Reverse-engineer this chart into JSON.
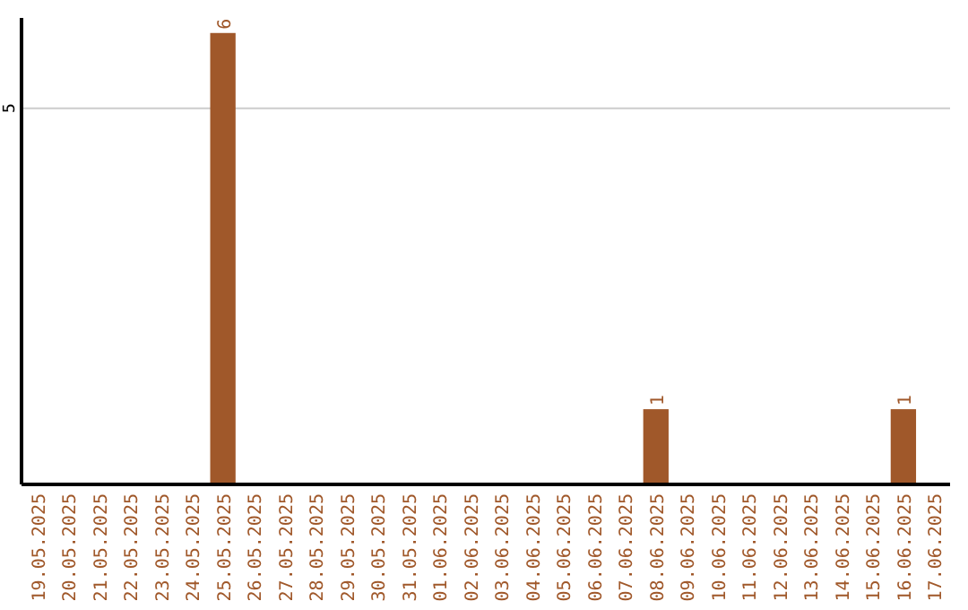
{
  "chart_data": {
    "type": "bar",
    "categories": [
      "19.05.2025",
      "20.05.2025",
      "21.05.2025",
      "22.05.2025",
      "23.05.2025",
      "24.05.2025",
      "25.05.2025",
      "26.05.2025",
      "27.05.2025",
      "28.05.2025",
      "29.05.2025",
      "30.05.2025",
      "31.05.2025",
      "01.06.2025",
      "02.06.2025",
      "03.06.2025",
      "04.06.2025",
      "05.06.2025",
      "06.06.2025",
      "07.06.2025",
      "08.06.2025",
      "09.06.2025",
      "10.06.2025",
      "11.06.2025",
      "12.06.2025",
      "13.06.2025",
      "14.06.2025",
      "15.06.2025",
      "16.06.2025",
      "17.06.2025"
    ],
    "values": [
      0,
      0,
      0,
      0,
      0,
      0,
      6,
      0,
      0,
      0,
      0,
      0,
      0,
      0,
      0,
      0,
      0,
      0,
      0,
      0,
      1,
      0,
      0,
      0,
      0,
      0,
      0,
      0,
      1,
      0
    ],
    "value_labels": [
      null,
      null,
      null,
      null,
      null,
      null,
      "6",
      null,
      null,
      null,
      null,
      null,
      null,
      null,
      null,
      null,
      null,
      null,
      null,
      null,
      "1",
      null,
      null,
      null,
      null,
      null,
      null,
      null,
      "1",
      null
    ],
    "color": "#a0582a",
    "ylim": [
      0,
      6.2
    ],
    "yticks": [
      5
    ],
    "grid": "y"
  }
}
